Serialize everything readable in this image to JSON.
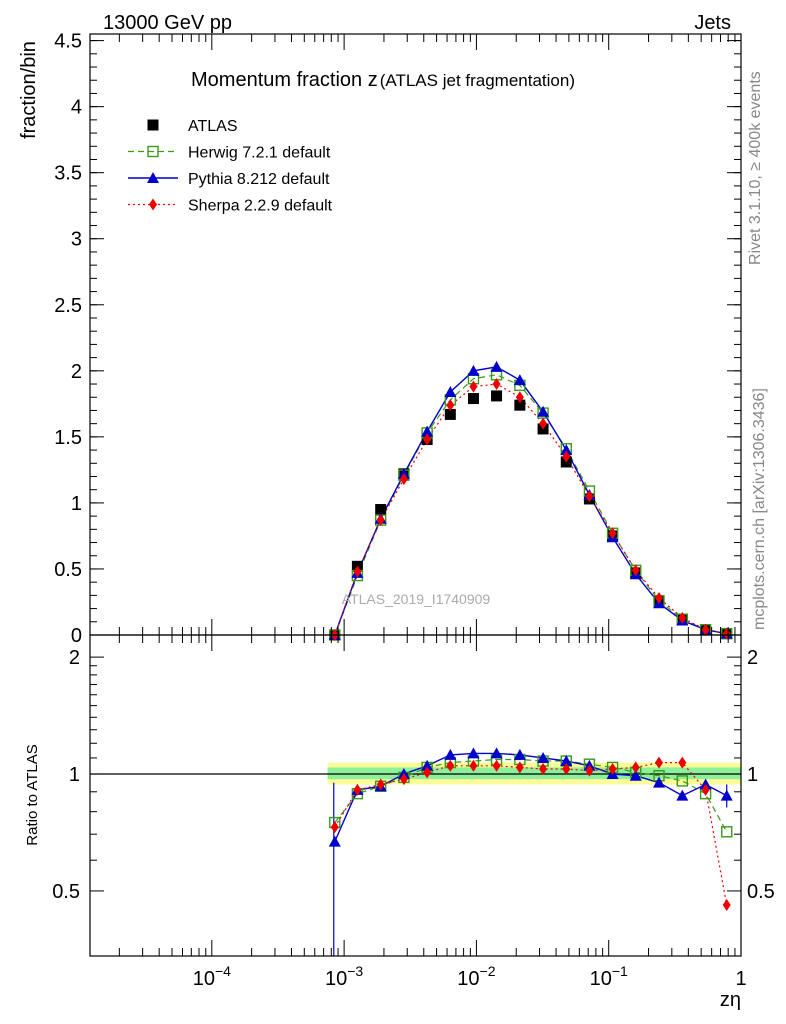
{
  "header": {
    "left": "13000 GeV pp",
    "right": "Jets"
  },
  "side_labels": {
    "rivet": "Rivet 3.1.10, ≥ 400k events",
    "mcplots": "mcplots.cern.ch [arXiv:1306.3436]"
  },
  "watermark": "ATLAS_2019_I1740909",
  "chart_data": [
    {
      "type": "scatter",
      "title_main": "Momentum fraction z",
      "title_sub": "(ATLAS jet fragmentation)",
      "ylabel": "fraction/bin",
      "xlabel": "zη",
      "xscale": "log",
      "xlim": [
        1.2e-05,
        1.0
      ],
      "ylim": [
        0,
        4.55
      ],
      "yticks": [
        0,
        0.5,
        1,
        1.5,
        2,
        2.5,
        3,
        3.5,
        4,
        4.5
      ],
      "ytick_labels": [
        "0",
        "0.5",
        "1",
        "1.5",
        "2",
        "2.5",
        "3",
        "3.5",
        "4",
        "4.5"
      ],
      "x": [
        0.00085,
        0.00126,
        0.00189,
        0.00283,
        0.00424,
        0.00635,
        0.0095,
        0.0142,
        0.0213,
        0.0319,
        0.0478,
        0.0715,
        0.107,
        0.16,
        0.24,
        0.36,
        0.54,
        0.78
      ],
      "series": [
        {
          "name": "ATLAS",
          "style": "data",
          "color": "#000000",
          "values": [
            0.0,
            0.52,
            0.95,
            1.22,
            1.48,
            1.67,
            1.79,
            1.81,
            1.74,
            1.56,
            1.31,
            1.03,
            0.75,
            0.47,
            0.26,
            0.12,
            0.04,
            0.01
          ]
        },
        {
          "name": "Herwig 7.2.1 default",
          "style": "open-square-dashed",
          "color": "#3a9a1a",
          "values": [
            0.0,
            0.45,
            0.87,
            1.21,
            1.53,
            1.78,
            1.94,
            1.97,
            1.89,
            1.68,
            1.41,
            1.09,
            0.77,
            0.49,
            0.26,
            0.12,
            0.04,
            0.01
          ]
        },
        {
          "name": "Pythia 8.212 default",
          "style": "triangle-solid",
          "color": "#0000cc",
          "values": [
            0.0,
            0.47,
            0.88,
            1.22,
            1.54,
            1.84,
            2.0,
            2.03,
            1.93,
            1.69,
            1.4,
            1.06,
            0.74,
            0.46,
            0.24,
            0.11,
            0.04,
            0.01
          ]
        },
        {
          "name": "Sherpa 2.2.9 default",
          "style": "diamond-dotted",
          "color": "#ee0000",
          "values": [
            0.0,
            0.48,
            0.87,
            1.18,
            1.48,
            1.74,
            1.88,
            1.9,
            1.8,
            1.6,
            1.35,
            1.05,
            0.77,
            0.49,
            0.28,
            0.13,
            0.04,
            0.01
          ]
        }
      ]
    },
    {
      "type": "scatter",
      "ylabel": "Ratio to ATLAS",
      "xscale": "log",
      "xlim": [
        1.2e-05,
        1.0
      ],
      "ylim": [
        0.34,
        2.28
      ],
      "yticks": [
        0.5,
        1,
        2
      ],
      "ytick_labels": [
        "0.5",
        "1",
        "2"
      ],
      "xticks": [
        0.0001,
        0.001,
        0.01,
        0.1,
        1
      ],
      "xtick_labels": [
        "10−4",
        "10−3",
        "10−2",
        "10−1",
        "1"
      ],
      "x": [
        0.00085,
        0.00126,
        0.00189,
        0.00283,
        0.00424,
        0.00635,
        0.0095,
        0.0142,
        0.0213,
        0.0319,
        0.0478,
        0.0715,
        0.107,
        0.16,
        0.24,
        0.36,
        0.54,
        0.78
      ],
      "band_x_range": [
        0.00075,
        1.0
      ],
      "band_yellow": {
        "lo": 0.94,
        "hi": 1.07
      },
      "band_green": {
        "lo": 0.97,
        "hi": 1.04
      },
      "series": [
        {
          "name": "Herwig 7.2.1 default",
          "color": "#3a9a1a",
          "values": [
            0.75,
            0.89,
            0.93,
            0.98,
            1.04,
            1.07,
            1.08,
            1.09,
            1.09,
            1.08,
            1.08,
            1.06,
            1.04,
            1.01,
            0.99,
            0.96,
            0.89,
            0.71
          ]
        },
        {
          "name": "Pythia 8.212 default",
          "color": "#0000cc",
          "values": [
            0.67,
            0.91,
            0.93,
            1.0,
            1.05,
            1.12,
            1.13,
            1.13,
            1.12,
            1.1,
            1.08,
            1.05,
            1.0,
            0.99,
            0.95,
            0.88,
            0.94,
            0.88
          ]
        },
        {
          "name": "Sherpa 2.2.9 default",
          "color": "#ee0000",
          "values": [
            0.73,
            0.91,
            0.94,
            0.97,
            1.01,
            1.05,
            1.05,
            1.05,
            1.04,
            1.03,
            1.03,
            1.02,
            1.03,
            1.04,
            1.07,
            1.07,
            0.91,
            0.46
          ]
        }
      ]
    }
  ]
}
